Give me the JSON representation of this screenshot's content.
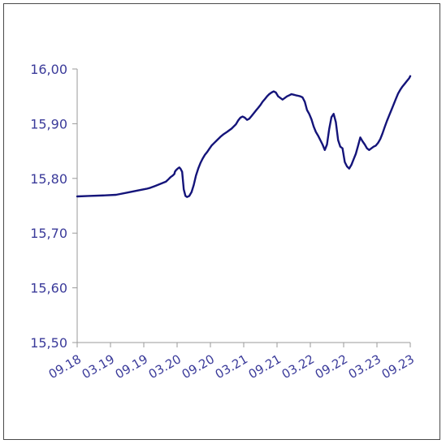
{
  "chart_data": {
    "type": "line",
    "title": "",
    "xlabel": "",
    "ylabel": "",
    "ylim": [
      15.5,
      16.0
    ],
    "yticks": [
      15.5,
      15.6,
      15.7,
      15.8,
      15.9,
      16.0
    ],
    "ytick_labels": [
      "15,50",
      "15,60",
      "15,70",
      "15,80",
      "15,90",
      "16,00"
    ],
    "xlim": [
      0,
      60
    ],
    "xticks": [
      0,
      6,
      12,
      18,
      24,
      30,
      36,
      42,
      48,
      54,
      60
    ],
    "xtick_labels": [
      "09.18",
      "03.19",
      "09.19",
      "03.20",
      "09.20",
      "03.21",
      "09.21",
      "03.22",
      "09.22",
      "03.23",
      "09.23"
    ],
    "grid": false,
    "legend": "none",
    "colors": {
      "line": "#14147a",
      "axis": "#9a9a9a",
      "text": "#3b3b9a"
    },
    "series": [
      {
        "x": [
          0,
          2,
          5,
          7,
          9,
          11,
          12.5,
          13.2,
          14,
          14.5,
          16,
          16.3,
          16.6,
          16.9,
          17.2,
          17.5,
          17.6,
          17.8,
          18.1,
          18.4,
          18.6,
          18.9,
          19.2,
          19.5,
          19.8,
          20.2,
          20.6,
          21,
          21.4,
          21.8,
          22.2,
          22.6,
          23,
          23.4,
          23.8,
          24.2,
          24.6,
          25.2,
          25.8,
          26.4,
          27,
          27.4,
          27.8,
          28.2,
          28.6,
          29,
          29.4,
          29.8,
          30.2,
          30.6,
          31,
          31.4,
          31.8,
          32.2,
          32.6,
          33,
          33.4,
          33.8,
          34.2,
          34.6,
          35,
          35.4,
          35.8,
          36.2,
          36.6,
          37,
          37.4,
          37.8,
          38.2,
          38.6,
          39,
          39.4,
          39.8,
          40.2,
          40.6,
          41,
          41.4,
          41.8,
          42.2,
          42.6,
          43,
          43.4,
          43.8,
          44.2,
          44.6,
          45,
          45.4,
          45.8,
          46.2,
          46.6,
          47,
          47.4,
          47.8,
          48.2,
          48.6,
          49,
          49.4,
          49.8,
          50.2,
          50.6,
          51,
          51.4,
          51.8,
          52.2,
          52.6,
          53,
          53.4,
          53.8,
          54.2,
          54.6,
          55,
          55.4,
          55.8,
          56.2,
          56.6,
          57,
          57.4,
          57.8,
          58.2,
          58.6,
          59,
          59.4,
          59.8,
          60
        ],
        "values": [
          15.767,
          15.768,
          15.769,
          15.77,
          15.774,
          15.778,
          15.781,
          15.783,
          15.786,
          15.788,
          15.794,
          15.797,
          15.8,
          15.803,
          15.805,
          15.808,
          15.812,
          15.815,
          15.818,
          15.82,
          15.818,
          15.812,
          15.78,
          15.768,
          15.766,
          15.768,
          15.775,
          15.788,
          15.805,
          15.818,
          15.828,
          15.836,
          15.843,
          15.848,
          15.854,
          15.86,
          15.864,
          15.87,
          15.876,
          15.881,
          15.885,
          15.888,
          15.891,
          15.895,
          15.899,
          15.906,
          15.911,
          15.913,
          15.911,
          15.907,
          15.909,
          15.914,
          15.919,
          15.924,
          15.929,
          15.934,
          15.94,
          15.945,
          15.95,
          15.954,
          15.957,
          15.959,
          15.957,
          15.95,
          15.947,
          15.944,
          15.947,
          15.95,
          15.952,
          15.954,
          15.953,
          15.952,
          15.951,
          15.95,
          15.948,
          15.94,
          15.925,
          15.918,
          15.908,
          15.895,
          15.885,
          15.878,
          15.87,
          15.862,
          15.852,
          15.862,
          15.89,
          15.912,
          15.918,
          15.903,
          15.87,
          15.858,
          15.855,
          15.83,
          15.822,
          15.818,
          15.825,
          15.835,
          15.845,
          15.86,
          15.875,
          15.868,
          15.862,
          15.855,
          15.852,
          15.855,
          15.858,
          15.86,
          15.865,
          15.872,
          15.882,
          15.894,
          15.905,
          15.915,
          15.925,
          15.935,
          15.945,
          15.955,
          15.962,
          15.968,
          15.973,
          15.978,
          15.983,
          15.987
        ]
      }
    ]
  }
}
